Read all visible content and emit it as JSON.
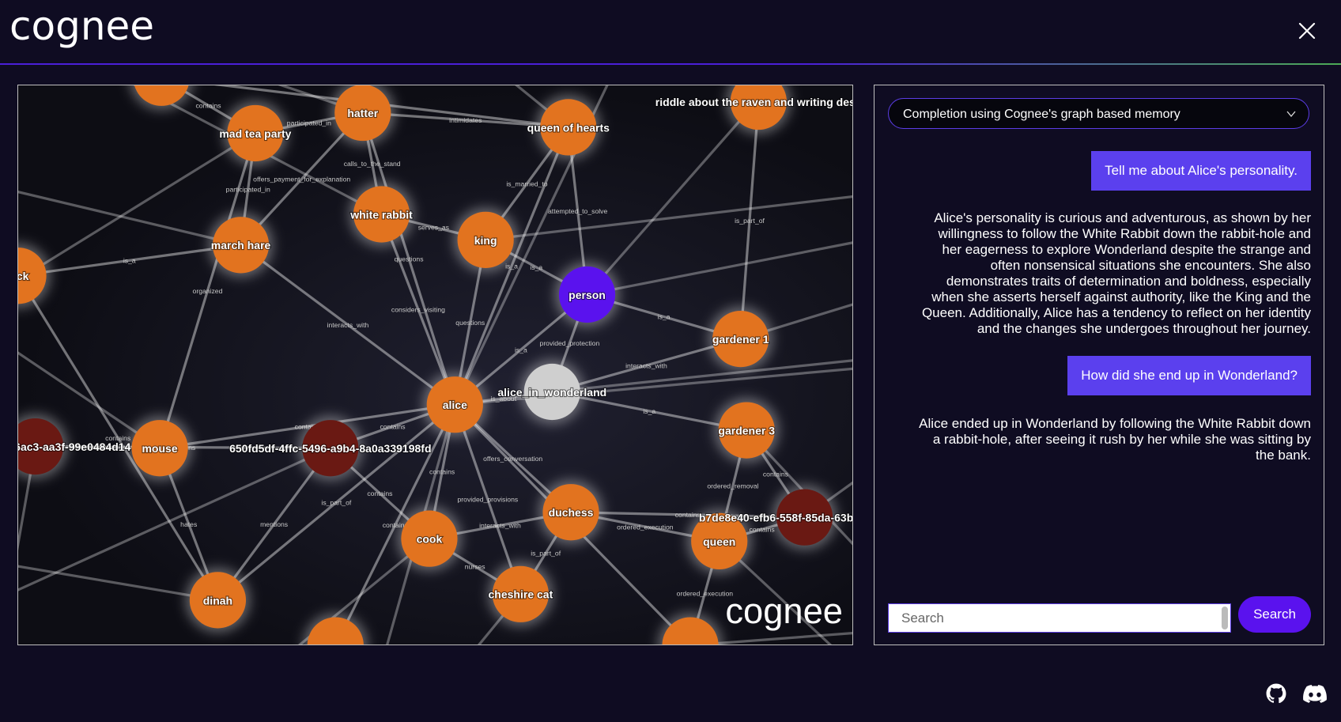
{
  "header": {
    "logo": "cognee"
  },
  "graph": {
    "watermark": "cognee",
    "nodes": [
      {
        "color": "#e2731f"
      },
      {
        "label": "mad tea party",
        "color": "#e2731f"
      },
      {
        "label": "hatter",
        "color": "#e2731f"
      },
      {
        "label": "queen of hearts",
        "color": "#e2731f"
      },
      {
        "label": "riddle about the raven and writing des",
        "color": "#e2731f"
      },
      {
        "label": "white rabbit",
        "color": "#e2731f"
      },
      {
        "label": "king",
        "color": "#e2731f"
      },
      {
        "label": "march hare",
        "color": "#e2731f"
      },
      {
        "label": "ck",
        "color": "#e2731f"
      },
      {
        "label": "person",
        "color": "#5a12ee"
      },
      {
        "label": "gardener 1",
        "color": "#e2731f"
      },
      {
        "label": "alice_in_wonderland",
        "color": "#cfcfcf"
      },
      {
        "label": "alice",
        "color": "#e2731f"
      },
      {
        "label": "gardener 3",
        "color": "#e2731f"
      },
      {
        "label": "6ac3-aa3f-99e0484d14",
        "color": "#6a1913"
      },
      {
        "label": "mouse",
        "color": "#e2731f"
      },
      {
        "label": "650fd5df-4ffc-5496-a9b4-8a0a339198fd",
        "color": "#6a1913"
      },
      {
        "label": "b7de8e40-efb6-558f-85da-63b",
        "color": "#6a1913"
      },
      {
        "label": "duchess",
        "color": "#e2731f"
      },
      {
        "label": "queen",
        "color": "#e2731f"
      },
      {
        "label": "cook",
        "color": "#e2731f"
      },
      {
        "label": "cheshire cat",
        "color": "#e2731f"
      },
      {
        "label": "dinah",
        "color": "#e2731f"
      },
      {
        "color": "#e2731f"
      },
      {
        "color": "#e2731f"
      }
    ],
    "edges": [
      {
        "source": 12,
        "target": 11,
        "label": "is_about"
      },
      {
        "source": 12,
        "target": 9,
        "label": "is_a"
      },
      {
        "source": 12,
        "target": 5,
        "label": "considers_visiting"
      },
      {
        "source": 12,
        "target": 2,
        "label": "questions"
      },
      {
        "source": 12,
        "target": 7,
        "label": "interacts_with"
      },
      {
        "source": 12,
        "target": 6,
        "label": "questions"
      },
      {
        "source": 12,
        "target": 16,
        "label": "contains"
      },
      {
        "source": 12,
        "target": 18,
        "label": "offers_conversation"
      },
      {
        "source": 12,
        "target": 20,
        "label": "contains"
      },
      {
        "source": 12,
        "target": 21,
        "label": "provided_provisions"
      },
      {
        "source": 12,
        "target": 15,
        "label": "contains"
      },
      {
        "source": 12,
        "target": 22,
        "label": "is_part_of"
      },
      {
        "source": 12,
        "target": 3,
        "label": "is_a"
      },
      {
        "source": 11,
        "target": 9,
        "label": "provided_protection"
      },
      {
        "source": 11,
        "target": 10,
        "label": "interacts_with"
      },
      {
        "source": 11,
        "target": 13,
        "label": "is_a"
      },
      {
        "source": 9,
        "target": 6,
        "label": "is_a"
      },
      {
        "source": 9,
        "target": 10,
        "label": "is_a"
      },
      {
        "source": 9,
        "target": 3,
        "label": "attempted_to_solve"
      },
      {
        "source": 6,
        "target": 3,
        "label": "is_married_to"
      },
      {
        "source": 6,
        "target": 5,
        "label": "serves_as"
      },
      {
        "source": 5,
        "target": 2,
        "label": "calls_to_the_stand"
      },
      {
        "source": 2,
        "target": 1,
        "label": "participated_in"
      },
      {
        "source": 7,
        "target": 1,
        "label": "participated_in"
      },
      {
        "source": 7,
        "target": 2,
        "label": "offers_payment_for_explanation"
      },
      {
        "source": 3,
        "target": 2,
        "label": "intimidates"
      },
      {
        "source": 3,
        "target": 0,
        "label": "contains"
      },
      {
        "source": 15,
        "target": 14,
        "label": "contains"
      },
      {
        "source": 15,
        "target": 22,
        "label": "hates"
      },
      {
        "source": 14,
        "target": 16,
        "label": "contains"
      },
      {
        "source": 16,
        "target": 22,
        "label": "mentions"
      },
      {
        "source": 16,
        "target": 20,
        "label": "contains"
      },
      {
        "source": 18,
        "target": 19,
        "label": "ordered_execution"
      },
      {
        "source": 18,
        "target": 17,
        "label": "contains"
      },
      {
        "source": 19,
        "target": 17,
        "label": "contains"
      },
      {
        "source": 19,
        "target": 13,
        "label": "ordered_removal"
      },
      {
        "source": 18,
        "target": 21,
        "label": "is_part_of"
      },
      {
        "source": 20,
        "target": 21,
        "label": "nurses"
      },
      {
        "source": 20,
        "target": 18,
        "label": "interacts_with"
      },
      {
        "source": 22,
        "target": 8,
        "label": "contains"
      },
      {
        "source": 23,
        "target": 12,
        "label": "contains"
      },
      {
        "source": 24,
        "target": 12,
        "label": "contains"
      },
      {
        "source": 24,
        "target": 19,
        "label": "ordered_execution"
      },
      {
        "source": 4,
        "target": 10,
        "label": "is_part_of"
      },
      {
        "source": 8,
        "target": 7,
        "label": "is_a"
      },
      {
        "source": 13,
        "target": 17,
        "label": "contains"
      },
      {
        "source": 1,
        "target": 15,
        "label": "organized"
      },
      {
        "source": 0,
        "target": 1,
        "label": "contains"
      }
    ]
  },
  "chat": {
    "mode": "Completion using Cognee's graph based memory",
    "messages": [
      {
        "role": "user",
        "text": "Tell me about Alice's personality."
      },
      {
        "role": "assistant",
        "text": "Alice's personality is curious and adventurous, as shown by her willingness to follow the White Rabbit down the rabbit-hole and her eagerness to explore Wonderland despite the strange and often nonsensical situations she encounters. She also demonstrates traits of determination and boldness, especially when she asserts herself against authority, like the King and the Queen. Additionally, Alice has a tendency to reflect on her identity and the changes she undergoes throughout her journey."
      },
      {
        "role": "user",
        "text": "How did she end up in Wonderland?"
      },
      {
        "role": "assistant",
        "text": "Alice ended up in Wonderland by following the White Rabbit down a rabbit-hole, after seeing it rush by her while she was sitting by the bank."
      }
    ],
    "search_placeholder": "Search",
    "search_button": "Search"
  }
}
